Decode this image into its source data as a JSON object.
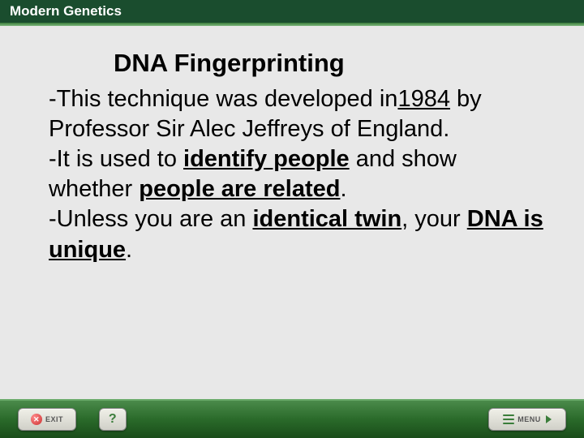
{
  "header": {
    "title": "Modern Genetics"
  },
  "slide": {
    "title": "DNA Fingerprinting",
    "p1_a": "-This technique was developed in",
    "p1_year": "1984",
    "p1_b": " by Professor Sir Alec Jeffreys of England.",
    "p2_a": "-It is used to ",
    "p2_u1": "identify people",
    "p2_b": " and show whether ",
    "p2_u2": "people are related",
    "p2_c": ".",
    "p3_a": "-Unless you are an ",
    "p3_u1": "identical twin",
    "p3_b": ", your ",
    "p3_u2": "DNA is unique",
    "p3_c": "."
  },
  "footer": {
    "exit": "EXIT",
    "help": "?",
    "menu": "MENU"
  },
  "colors": {
    "header_bg": "#1a4d2e",
    "page_bg": "#e8e8e8",
    "footer_grad_top": "#4a8a4a",
    "footer_grad_bot": "#1a4d1a"
  }
}
